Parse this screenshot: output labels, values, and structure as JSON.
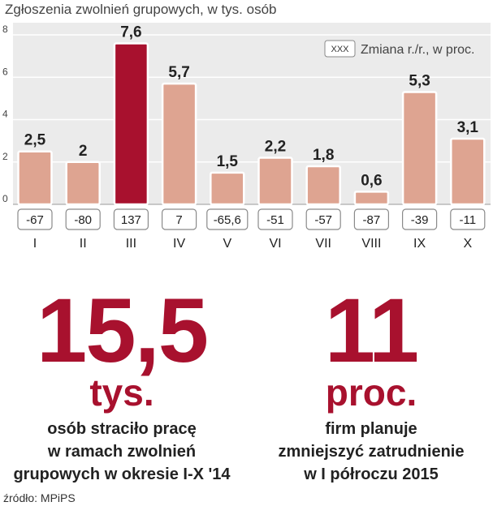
{
  "header": {
    "title": "Zgłoszenia zwolnień grupowych, w tys. osób"
  },
  "chart_data": {
    "type": "bar",
    "title": "Zgłoszenia zwolnień grupowych, w tys. osób",
    "categories": [
      "I",
      "II",
      "III",
      "IV",
      "V",
      "VI",
      "VII",
      "VIII",
      "IX",
      "X"
    ],
    "values": [
      2.5,
      2,
      7.6,
      5.7,
      1.5,
      2.2,
      1.8,
      0.6,
      5.3,
      3.1
    ],
    "value_labels": [
      "2,5",
      "2",
      "7,6",
      "5,7",
      "1,5",
      "2,2",
      "1,8",
      "0,6",
      "5,3",
      "3,1"
    ],
    "yoy_change": [
      "-67",
      "-80",
      "137",
      "7",
      "-65,6",
      "-51",
      "-57",
      "-87",
      "-39",
      "-11"
    ],
    "highlight_index": 2,
    "ylim": [
      0,
      8
    ],
    "yticks": [
      "0",
      "2",
      "4",
      "6",
      "8"
    ],
    "grid": true,
    "legend": {
      "box_text": "XXX",
      "text": "Zmiana r./r., w proc.",
      "placement": "top-right"
    },
    "colors": {
      "bar": "#dea491",
      "bar_highlight": "#a8112e",
      "plot_bg": "#ebebeb",
      "grid": "#ffffff"
    }
  },
  "stats": {
    "left": {
      "number": "15,5",
      "unit": "tys.",
      "desc": [
        "osób straciło pracę",
        "w ramach zwolnień",
        "grupowych w okresie I-X '14"
      ]
    },
    "right": {
      "number": "11",
      "unit": "proc.",
      "desc": [
        "firm planuje",
        "zmniejszyć zatrudnienie",
        "w I półroczu 2015"
      ]
    }
  },
  "source": "źródło: MPiPS"
}
